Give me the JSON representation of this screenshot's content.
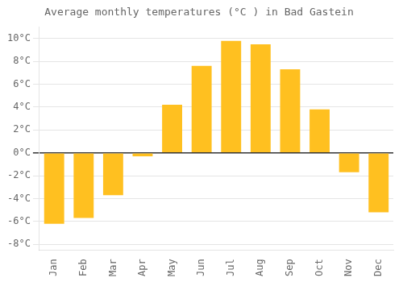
{
  "chart_data": {
    "type": "bar",
    "title": "Average monthly temperatures (°C ) in Bad Gastein",
    "categories": [
      "Jan",
      "Feb",
      "Mar",
      "Apr",
      "May",
      "Jun",
      "Jul",
      "Aug",
      "Sep",
      "Oct",
      "Nov",
      "Dec"
    ],
    "values": [
      -6.2,
      -5.7,
      -3.7,
      -0.3,
      4.2,
      7.6,
      9.8,
      9.5,
      7.3,
      3.8,
      -1.7,
      -5.2
    ],
    "color": "#FFC020",
    "ylim": [
      -8.5,
      11
    ],
    "yticks": [
      {
        "value": -8,
        "label": "-8°C"
      },
      {
        "value": -6,
        "label": "-6°C"
      },
      {
        "value": -4,
        "label": "-4°C"
      },
      {
        "value": -2,
        "label": "-2°C"
      },
      {
        "value": 0,
        "label": "0°C"
      },
      {
        "value": 2,
        "label": "2°C"
      },
      {
        "value": 4,
        "label": "4°C"
      },
      {
        "value": 6,
        "label": "6°C"
      },
      {
        "value": 8,
        "label": "8°C"
      },
      {
        "value": 10,
        "label": "10°C"
      }
    ],
    "grid": true
  }
}
